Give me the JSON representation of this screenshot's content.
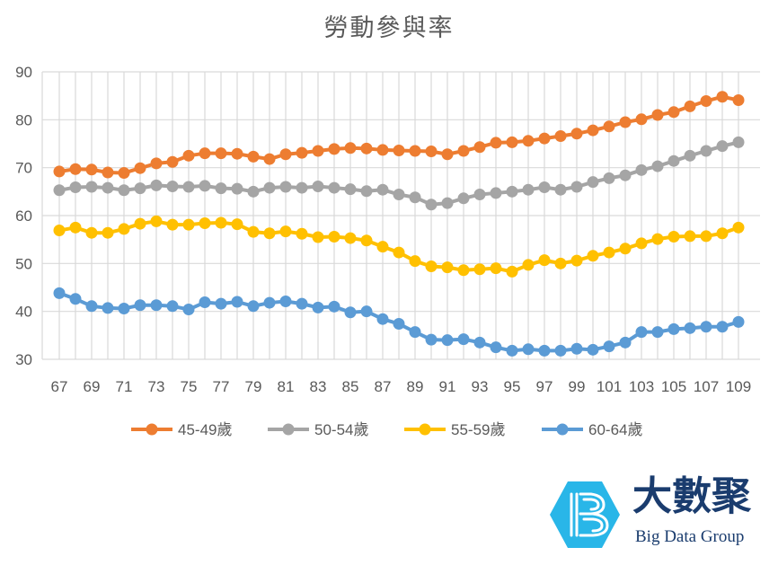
{
  "chart_data": {
    "type": "line",
    "title": "勞動參與率",
    "xlabel": "",
    "ylabel": "",
    "ylim": [
      30,
      90
    ],
    "yticks": [
      30,
      40,
      50,
      60,
      70,
      80,
      90
    ],
    "grid": true,
    "legend_position": "bottom",
    "x": [
      67,
      68,
      69,
      70,
      71,
      72,
      73,
      74,
      75,
      76,
      77,
      78,
      79,
      80,
      81,
      82,
      83,
      84,
      85,
      86,
      87,
      88,
      89,
      90,
      91,
      92,
      93,
      94,
      95,
      96,
      97,
      98,
      99,
      100,
      101,
      102,
      103,
      104,
      105,
      106,
      107,
      108,
      109
    ],
    "x_tick_labels": [
      "67",
      "69",
      "71",
      "73",
      "75",
      "77",
      "79",
      "81",
      "83",
      "85",
      "87",
      "89",
      "91",
      "93",
      "95",
      "97",
      "99",
      "101",
      "103",
      "105",
      "107",
      "109"
    ],
    "series": [
      {
        "name": "45-49歲",
        "color": "#ed7d31",
        "values": [
          69.2,
          69.7,
          69.6,
          69.0,
          68.9,
          69.9,
          70.9,
          71.2,
          72.5,
          73.0,
          73.0,
          72.9,
          72.3,
          71.8,
          72.8,
          73.1,
          73.5,
          73.9,
          74.1,
          74.0,
          73.7,
          73.6,
          73.5,
          73.4,
          72.8,
          73.5,
          74.3,
          75.2,
          75.3,
          75.6,
          76.1,
          76.6,
          77.1,
          77.8,
          78.6,
          79.5,
          80.1,
          81.0,
          81.6,
          82.8,
          83.9,
          84.8,
          84.1
        ]
      },
      {
        "name": "50-54歲",
        "color": "#a5a5a5",
        "values": [
          65.3,
          65.9,
          66.0,
          65.8,
          65.3,
          65.7,
          66.3,
          66.1,
          66.0,
          66.2,
          65.7,
          65.6,
          65.0,
          65.8,
          66.0,
          65.8,
          66.1,
          65.8,
          65.5,
          65.1,
          65.4,
          64.4,
          63.8,
          62.3,
          62.6,
          63.6,
          64.4,
          64.7,
          65.0,
          65.4,
          65.9,
          65.4,
          66.0,
          67.0,
          67.8,
          68.4,
          69.5,
          70.3,
          71.4,
          72.5,
          73.5,
          74.5,
          75.3
        ]
      },
      {
        "name": "55-59歲",
        "color": "#ffc000",
        "values": [
          56.9,
          57.5,
          56.4,
          56.4,
          57.2,
          58.3,
          58.8,
          58.1,
          58.1,
          58.4,
          58.5,
          58.2,
          56.6,
          56.3,
          56.7,
          56.2,
          55.5,
          55.6,
          55.3,
          54.8,
          53.5,
          52.3,
          50.5,
          49.4,
          49.2,
          48.6,
          48.8,
          49.0,
          48.3,
          49.7,
          50.7,
          50.0,
          50.6,
          51.6,
          52.3,
          53.1,
          54.2,
          55.1,
          55.6,
          55.7,
          55.7,
          56.3,
          57.5
        ]
      },
      {
        "name": "60-64歲",
        "color": "#5b9bd5",
        "values": [
          43.8,
          42.6,
          41.1,
          40.7,
          40.6,
          41.3,
          41.3,
          41.1,
          40.4,
          41.9,
          41.6,
          42.0,
          41.1,
          41.8,
          42.1,
          41.6,
          40.8,
          41.0,
          39.8,
          40.0,
          38.4,
          37.4,
          35.7,
          34.1,
          34.0,
          34.2,
          33.5,
          32.5,
          31.8,
          32.1,
          31.8,
          31.8,
          32.2,
          32.0,
          32.7,
          33.5,
          35.7,
          35.7,
          36.3,
          36.5,
          36.8,
          36.8,
          37.8
        ]
      }
    ]
  },
  "logo": {
    "name_cn": "大數聚",
    "name_en": "Big Data Group",
    "color": "#1a3c6e",
    "icon_color": "#29b6e8"
  }
}
